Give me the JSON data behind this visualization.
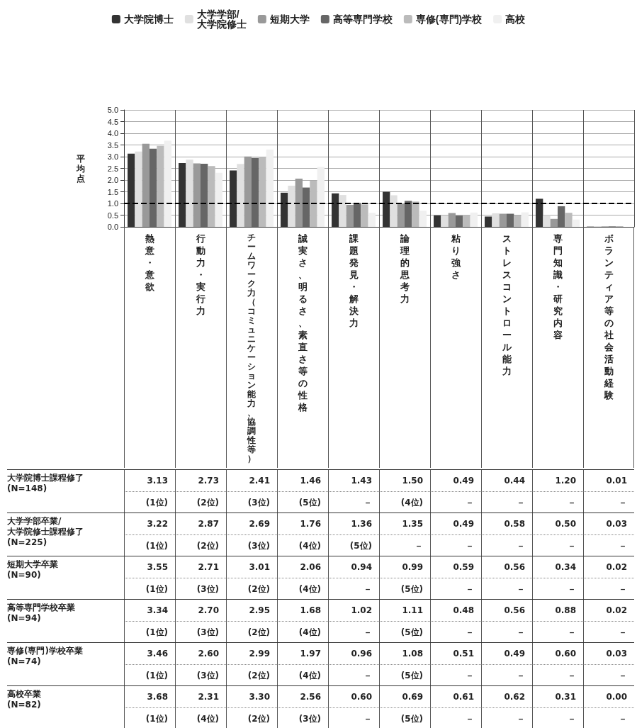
{
  "chart_data": {
    "type": "bar",
    "ylabel": "平均点",
    "categories": [
      "熱意・意欲",
      "行動力・実行力",
      "チームワーク力（コミュニケーション能力、協調性等）",
      "誠実さ、明るさ、素直さ等の性格",
      "課題発見・解決力",
      "論理的思考力",
      "粘り強さ",
      "ストレスコントロール能力",
      "専門知識・研究内容",
      "ボランティア等の社会活動経験"
    ],
    "series": [
      {
        "name": "大学院博士",
        "color": "#333333",
        "values": [
          3.13,
          2.73,
          2.41,
          1.46,
          1.43,
          1.5,
          0.49,
          0.44,
          1.2,
          0.01
        ],
        "value_labels": [
          "3.13",
          "2.73",
          "2.41",
          "1.46",
          "1.43",
          "1.50",
          "0.49",
          "0.44",
          "1.20",
          "0.01"
        ]
      },
      {
        "name": "大学学部/\n大学院修士",
        "color": "#e0e0e0",
        "values": [
          3.22,
          2.87,
          2.69,
          1.76,
          1.36,
          1.35,
          0.49,
          0.58,
          0.5,
          0.03
        ],
        "value_labels": [
          "3.22",
          "2.87",
          "2.69",
          "1.76",
          "1.36",
          "1.35",
          "0.49",
          "0.58",
          "0.50",
          "0.03"
        ]
      },
      {
        "name": "短期大学",
        "color": "#999999",
        "values": [
          3.55,
          2.71,
          3.01,
          2.06,
          0.94,
          0.99,
          0.59,
          0.56,
          0.34,
          0.02
        ],
        "value_labels": [
          "3.55",
          "2.71",
          "3.01",
          "2.06",
          "0.94",
          "0.99",
          "0.59",
          "0.56",
          "0.34",
          "0.02"
        ]
      },
      {
        "name": "高等専門学校",
        "color": "#666666",
        "values": [
          3.34,
          2.7,
          2.95,
          1.68,
          1.02,
          1.11,
          0.48,
          0.56,
          0.88,
          0.02
        ],
        "value_labels": [
          "3.34",
          "2.70",
          "2.95",
          "1.68",
          "1.02",
          "1.11",
          "0.48",
          "0.56",
          "0.88",
          "0.02"
        ]
      },
      {
        "name": "専修(専門)学校",
        "color": "#bbbbbb",
        "values": [
          3.46,
          2.6,
          2.99,
          1.97,
          0.96,
          1.08,
          0.51,
          0.49,
          0.6,
          0.03
        ],
        "value_labels": [
          "3.46",
          "2.60",
          "2.99",
          "1.97",
          "0.96",
          "1.08",
          "0.51",
          "0.49",
          "0.60",
          "0.03"
        ]
      },
      {
        "name": "高校",
        "color": "#f0f0f0",
        "values": [
          3.68,
          2.31,
          3.3,
          2.56,
          0.6,
          0.69,
          0.61,
          0.62,
          0.31,
          0.0
        ],
        "value_labels": [
          "3.68",
          "2.31",
          "3.30",
          "2.56",
          "0.60",
          "0.69",
          "0.61",
          "0.62",
          "0.31",
          "0.00"
        ]
      }
    ],
    "ylim": [
      0,
      5
    ],
    "yticks": [
      {
        "value": 0,
        "label": "0.0"
      },
      {
        "value": 0.5,
        "label": "0.5"
      },
      {
        "value": 1,
        "label": "1.0"
      },
      {
        "value": 1.5,
        "label": "1.5"
      },
      {
        "value": 2,
        "label": "2.0"
      },
      {
        "value": 2.5,
        "label": "2.5"
      },
      {
        "value": 3,
        "label": "3.0"
      },
      {
        "value": 3.5,
        "label": "3.5"
      },
      {
        "value": 4,
        "label": "4.0"
      },
      {
        "value": 4.5,
        "label": "4.5"
      },
      {
        "value": 5,
        "label": "5.0"
      }
    ],
    "ref_lines": [
      {
        "axis": "y",
        "value": 1.0,
        "color": "#000000",
        "line_style": "dashed"
      }
    ],
    "grid": true,
    "legend": "top",
    "annotations": [
      "大学院博士課程修了\n(N=148)",
      "大学学部卒業/\n大学院修士課程修了\n(N=225)",
      "短期大学卒業\n(N=90)",
      "高等専門学校卒業\n(N=94)",
      "専修(専門)学校卒業\n(N=74)",
      "高校卒業\n(N=82)",
      "(1位)",
      "(2位)",
      "(3位)",
      "(5位)",
      "－",
      "(4位)",
      "－",
      "－",
      "－",
      "－",
      "(1位)",
      "(2位)",
      "(3位)",
      "(4位)",
      "(5位)",
      "－",
      "－",
      "－",
      "－",
      "－",
      "(1位)",
      "(3位)",
      "(2位)",
      "(4位)",
      "－",
      "(5位)",
      "－",
      "－",
      "－",
      "－",
      "(1位)",
      "(3位)",
      "(2位)",
      "(4位)",
      "－",
      "(5位)",
      "－",
      "－",
      "－",
      "－",
      "(1位)",
      "(3位)",
      "(2位)",
      "(4位)",
      "－",
      "(5位)",
      "－",
      "－",
      "－",
      "－",
      "(1位)",
      "(4位)",
      "(2位)",
      "(3位)",
      "－",
      "(5位)",
      "－",
      "－",
      "－",
      "－"
    ]
  }
}
